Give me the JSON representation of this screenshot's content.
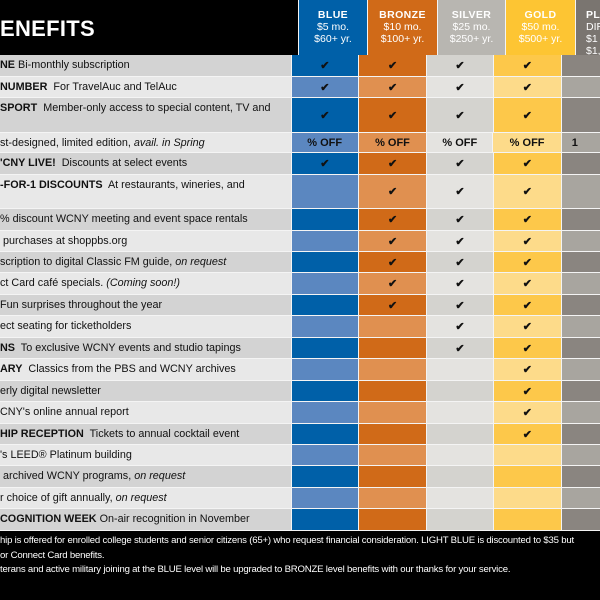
{
  "title": "ENEFITS",
  "tiers": [
    {
      "name": "BLUE",
      "monthly": "$5 mo.",
      "yearly": "$60+ yr.",
      "dark": "#0060a8",
      "light": "#5b87c0",
      "text": "#fff"
    },
    {
      "name": "BRONZE",
      "monthly": "$10 mo.",
      "yearly": "$100+ yr.",
      "dark": "#d06a18",
      "light": "#e09050",
      "text": "#fff"
    },
    {
      "name": "SILVER",
      "monthly": "$25 mo.",
      "yearly": "$250+ yr.",
      "dark": "#d4d3cf",
      "light": "#e4e3e0",
      "text": "#fff",
      "hbg": "#b8b6b1"
    },
    {
      "name": "GOLD",
      "monthly": "$50 mo.",
      "yearly": "$500+ yr.",
      "dark": "#fdc84a",
      "light": "#fddb8a",
      "text": "#fff",
      "hbg": "#fdc533"
    },
    {
      "name": "PLA",
      "monthly": "DIR",
      "yearly": "$1",
      "extra": "$1,",
      "dark": "#8a8580",
      "light": "#a8a59f",
      "text": "#fff",
      "hbg": "#7a7570"
    }
  ],
  "rows": [
    {
      "bold": "NE",
      "text": " Bi-monthly subscription",
      "checks": [
        1,
        1,
        1,
        1,
        0
      ],
      "h": 22
    },
    {
      "bold": " NUMBER",
      "text": "  For TravelAuc and TelAuc",
      "checks": [
        1,
        1,
        1,
        1,
        0
      ],
      "h": 21
    },
    {
      "bold": "SPORT",
      "text": "  Member-only access to special content, TV and",
      "checks": [
        1,
        1,
        1,
        1,
        0
      ],
      "h": 35
    },
    {
      "bold": "",
      "text": "st-designed, limited edition, ",
      "italic": "avail. in Spring",
      "cells": [
        "% OFF",
        "% OFF",
        "% OFF",
        "% OFF",
        "1"
      ],
      "h": 20
    },
    {
      "bold": "'CNY LIVE!",
      "text": "  Discounts at select events",
      "checks": [
        1,
        1,
        1,
        1,
        0
      ],
      "h": 22
    },
    {
      "bold": "-FOR-1 DISCOUNTS",
      "text": "  At restaurants, wineries, and",
      "checks": [
        0,
        1,
        1,
        1,
        0
      ],
      "h": 34
    },
    {
      "bold": "",
      "text": "% discount WCNY meeting and event space rentals",
      "checks": [
        0,
        1,
        1,
        1,
        0
      ],
      "h": 22
    },
    {
      "bold": "",
      "text": " purchases at shoppbs.org",
      "checks": [
        0,
        1,
        1,
        1,
        0
      ],
      "h": 21
    },
    {
      "bold": "",
      "text": "scription to digital Classic FM guide, ",
      "italic": "on request",
      "checks": [
        0,
        1,
        1,
        1,
        0
      ],
      "h": 21
    },
    {
      "bold": "",
      "text": "ct Card café specials. ",
      "italic": "(Coming soon!)",
      "checks": [
        0,
        1,
        1,
        1,
        0
      ],
      "h": 22
    },
    {
      "bold": "",
      "text": "Fun surprises throughout the year",
      "checks": [
        0,
        1,
        1,
        1,
        0
      ],
      "h": 21
    },
    {
      "bold": "",
      "text": "ect seating for ticketholders",
      "checks": [
        0,
        0,
        1,
        1,
        0
      ],
      "h": 22
    },
    {
      "bold": "NS",
      "text": "  To exclusive WCNY events and studio tapings",
      "checks": [
        0,
        0,
        1,
        1,
        0
      ],
      "h": 21
    },
    {
      "bold": "ARY",
      "text": "  Classics from the PBS and WCNY archives",
      "checks": [
        0,
        0,
        0,
        1,
        0
      ],
      "h": 22
    },
    {
      "bold": "",
      "text": "erly digital newsletter",
      "checks": [
        0,
        0,
        0,
        1,
        0
      ],
      "h": 21
    },
    {
      "bold": "",
      "text": "CNY's online annual report",
      "checks": [
        0,
        0,
        0,
        1,
        0
      ],
      "h": 22
    },
    {
      "bold": "HIP RECEPTION",
      "text": "  Tickets to annual cocktail event",
      "checks": [
        0,
        0,
        0,
        1,
        0
      ],
      "h": 21
    },
    {
      "bold": "",
      "text": "'s LEED® Platinum building",
      "checks": [
        0,
        0,
        0,
        0,
        0
      ],
      "h": 21
    },
    {
      "bold": "",
      "text": " archived WCNY programs, ",
      "italic": "on request",
      "checks": [
        0,
        0,
        0,
        0,
        0
      ],
      "h": 22
    },
    {
      "bold": "",
      "text": "r choice of gift annually, ",
      "italic": "on request",
      "checks": [
        0,
        0,
        0,
        0,
        0
      ],
      "h": 21
    },
    {
      "bold": "COGNITION WEEK",
      "text": " On-air recognition in November",
      "checks": [
        0,
        0,
        0,
        0,
        0
      ],
      "h": 22
    }
  ],
  "check_symbol": "✔",
  "footer": [
    "hip is offered for enrolled college students and senior citizens (65+) who request financial consideration. LIGHT BLUE is discounted to $35 but",
    "or Connect Card benefits.",
    "terans and active military joining at the BLUE level will be upgraded to BRONZE level benefits with our thanks for your service."
  ]
}
